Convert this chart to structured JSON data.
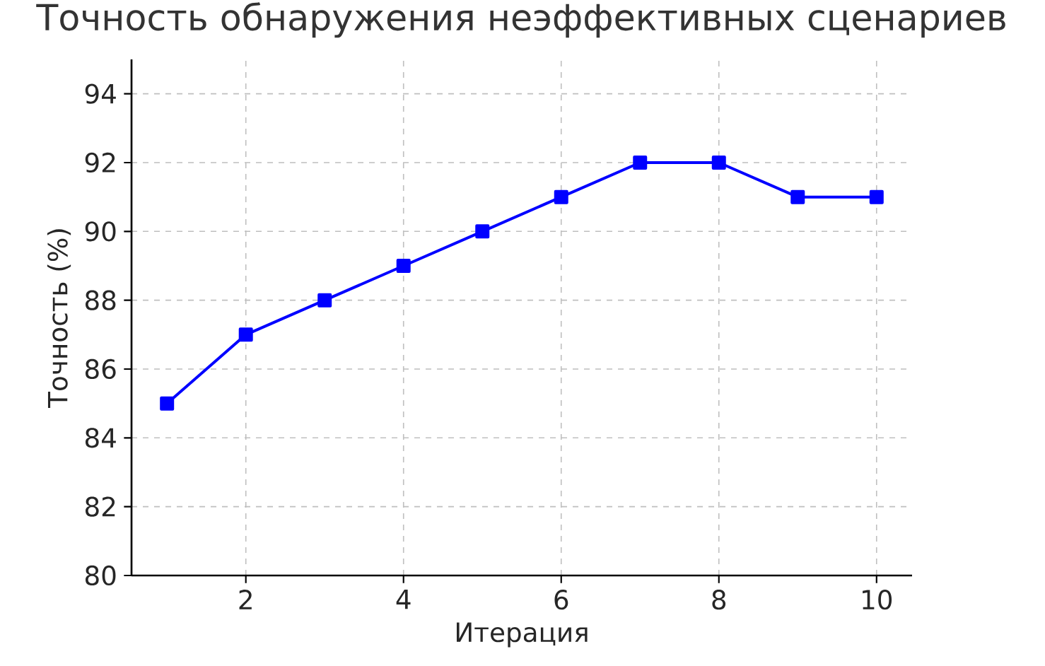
{
  "chart_data": {
    "type": "line",
    "title": "Точность обнаружения неэффективных сценариев",
    "xlabel": "Итерация",
    "ylabel": "Точность (%)",
    "x": [
      1,
      2,
      3,
      4,
      5,
      6,
      7,
      8,
      9,
      10
    ],
    "series": [
      {
        "color": "#0000ff",
        "values": [
          85,
          87,
          88,
          89,
          90,
          91,
          92,
          92,
          91,
          91
        ]
      }
    ],
    "xlim": [
      0.55,
      10.45
    ],
    "ylim": [
      80,
      95
    ],
    "xticks": [
      2,
      4,
      6,
      8,
      10
    ],
    "yticks": [
      80,
      82,
      84,
      86,
      88,
      90,
      92,
      94
    ],
    "grid": true,
    "marker": "square",
    "line_style": "solid"
  }
}
